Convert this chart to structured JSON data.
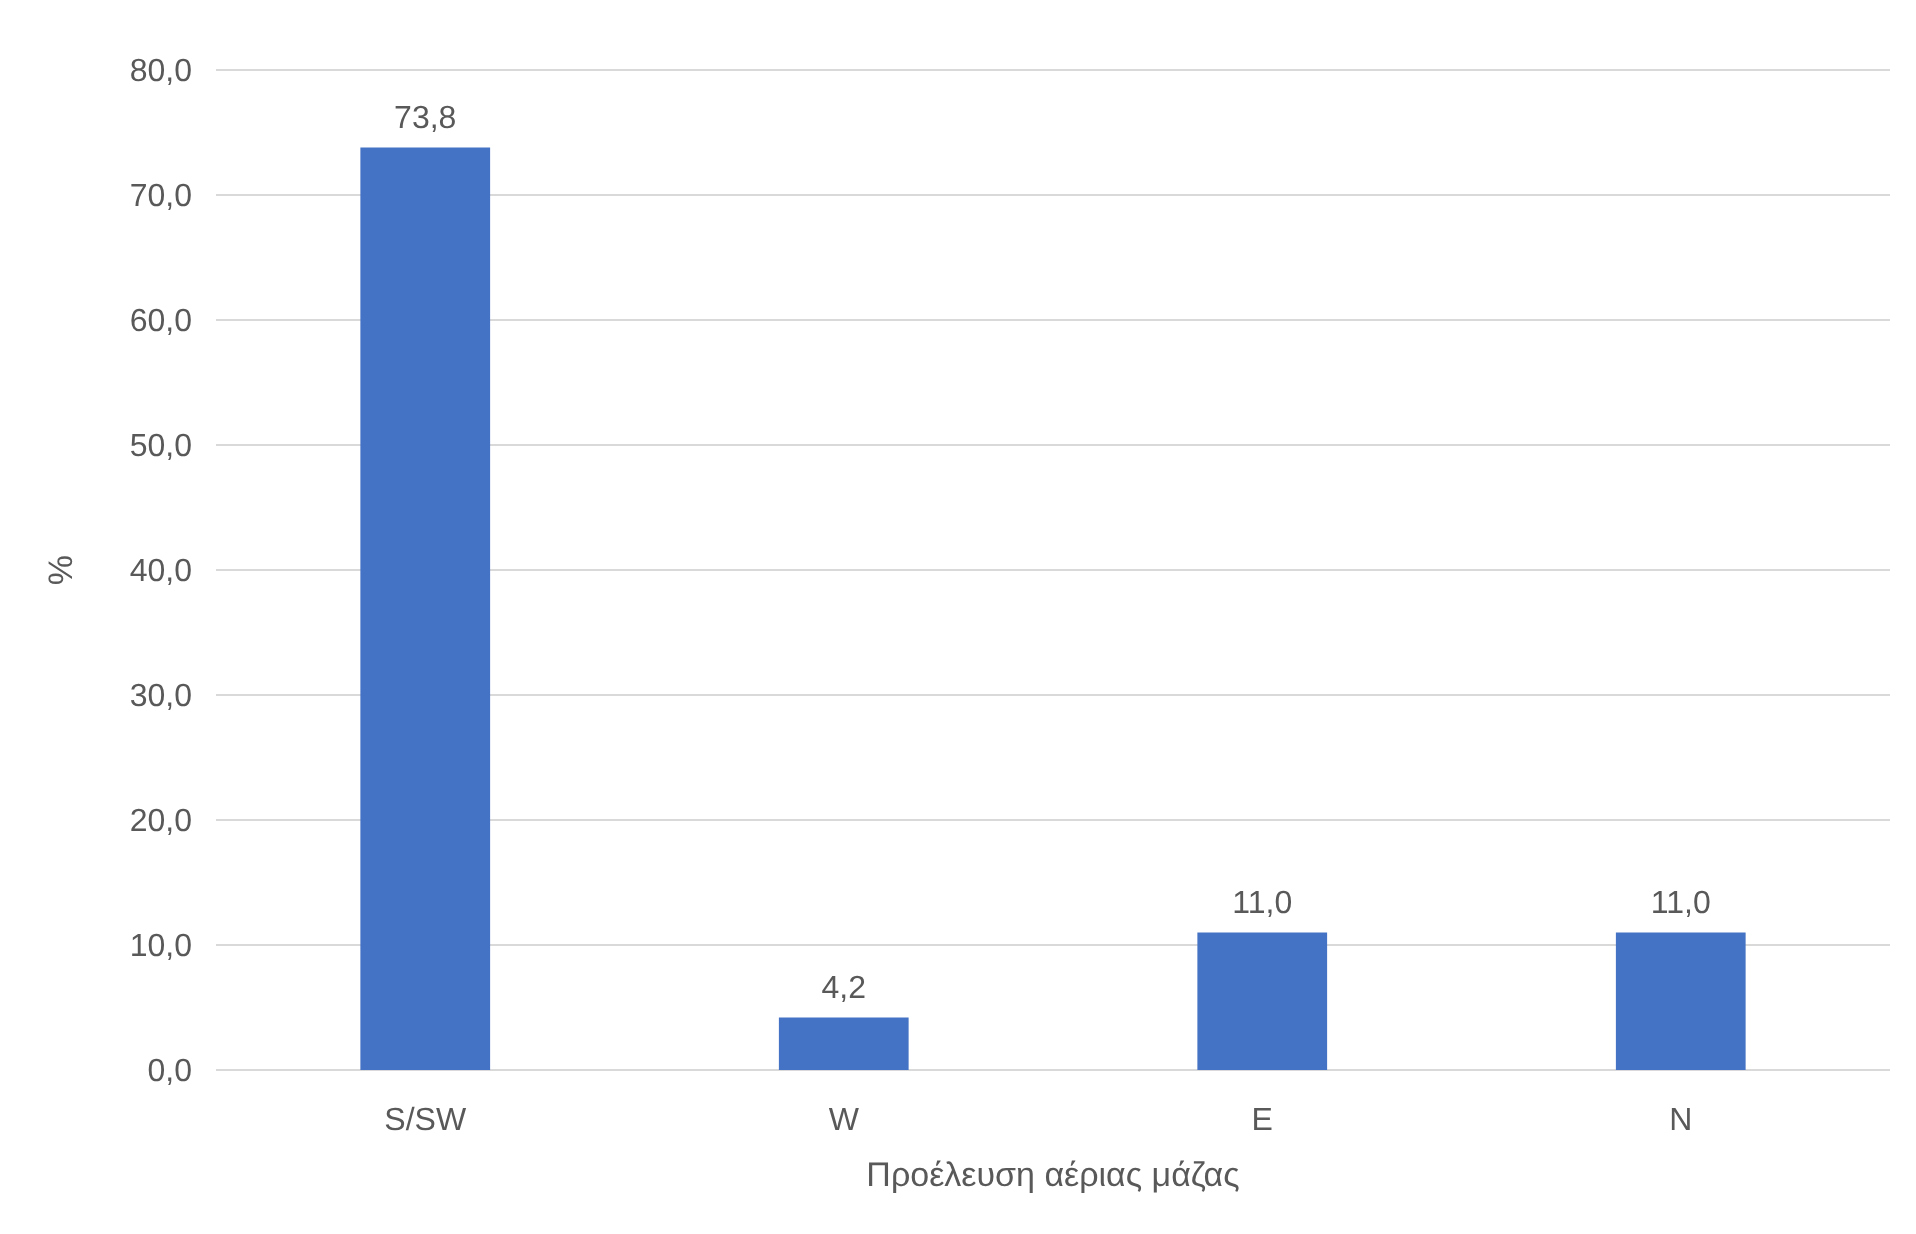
{
  "chart_data": {
    "type": "bar",
    "xlabel": "Προέλευση αέριας μάζας",
    "ylabel": "%",
    "categories": [
      "S/SW",
      "W",
      "E",
      "N"
    ],
    "values": [
      73.8,
      4.2,
      11.0,
      11.0
    ],
    "value_labels": [
      "73,8",
      "4,2",
      "11,0",
      "11,0"
    ],
    "color": "#4472c4",
    "ylim": [
      0,
      80
    ],
    "yticks": [
      {
        "value": 0,
        "label": "0,0"
      },
      {
        "value": 10,
        "label": "10,0"
      },
      {
        "value": 20,
        "label": "20,0"
      },
      {
        "value": 30,
        "label": "30,0"
      },
      {
        "value": 40,
        "label": "40,0"
      },
      {
        "value": 50,
        "label": "50,0"
      },
      {
        "value": 60,
        "label": "60,0"
      },
      {
        "value": 70,
        "label": "70,0"
      },
      {
        "value": 80,
        "label": "80,0"
      }
    ],
    "grid": "y"
  }
}
